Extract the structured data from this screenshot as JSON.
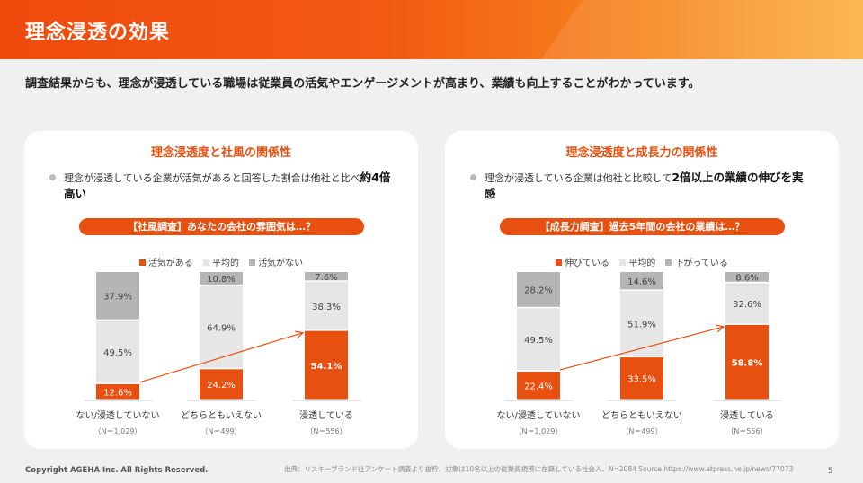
{
  "header": {
    "title": "理念浸透の効果"
  },
  "lead": "調査結果からも、理念が浸透している職場は従業員の活気やエンゲージメントが高まり、業績も向上することがわかっています。",
  "colors": {
    "accent": "#e8500f",
    "mid": "#e6e6e6",
    "low": "#b5b5b5"
  },
  "panels": [
    {
      "title": "理念浸透度と社風の関係性",
      "bullet_text": "理念が浸透している企業が活気があると回答した割合は他社と比べ",
      "bullet_bold": "約4倍高い",
      "question": "【社風調査】あなたの会社の雰囲気は…？",
      "legend": [
        "活気がある",
        "平均的",
        "活気がない"
      ]
    },
    {
      "title": "理念浸透度と成長力の関係性",
      "bullet_text": "理念が浸透している企業は他社と比較して",
      "bullet_bold": "2倍以上の業績の伸びを実感",
      "question": "【成長力調査】過去5年間の会社の業績は…？",
      "legend": [
        "伸びている",
        "平均的",
        "下がっている"
      ]
    }
  ],
  "chart_data": [
    {
      "type": "bar",
      "stacked": true,
      "categories": [
        "ない/浸透していない",
        "どちらともいえない",
        "浸透している"
      ],
      "sample_sizes": [
        "（N＝1,029）",
        "（N＝499）",
        "（N＝556）"
      ],
      "series": [
        {
          "name": "活気がある",
          "values": [
            12.6,
            24.2,
            54.1
          ],
          "labels": [
            "12.6%",
            "24.2%",
            "54.1%"
          ]
        },
        {
          "name": "平均的",
          "values": [
            49.5,
            64.9,
            38.3
          ],
          "labels": [
            "49.5%",
            "64.9%",
            "38.3%"
          ]
        },
        {
          "name": "活気がない",
          "values": [
            37.9,
            10.8,
            7.6
          ],
          "labels": [
            "37.9%",
            "10.8%",
            "7.6%"
          ]
        }
      ],
      "ylim": [
        0,
        100
      ]
    },
    {
      "type": "bar",
      "stacked": true,
      "categories": [
        "ない/浸透していない",
        "どちらともいえない",
        "浸透している"
      ],
      "sample_sizes": [
        "（N＝1,029）",
        "（N＝499）",
        "（N＝556）"
      ],
      "series": [
        {
          "name": "伸びている",
          "values": [
            22.4,
            33.5,
            58.8
          ],
          "labels": [
            "22.4%",
            "33.5%",
            "58.8%"
          ]
        },
        {
          "name": "平均的",
          "values": [
            49.5,
            51.9,
            32.6
          ],
          "labels": [
            "49.5%",
            "51.9%",
            "32.6%"
          ]
        },
        {
          "name": "下がっている",
          "values": [
            28.2,
            14.6,
            8.6
          ],
          "labels": [
            "28.2%",
            "14.6%",
            "8.6%"
          ]
        }
      ],
      "ylim": [
        0,
        100
      ]
    }
  ],
  "footer": {
    "copyright": "Copyright AGEHA Inc. All Rights Reserved.",
    "source": "出典：リスキーブランド社アンケート調査より抜粋、対象は10名以上の従業員規模に在籍している社会人、N=2084 Source https://www.atpress.ne.jp/news/77073",
    "page": "5"
  }
}
